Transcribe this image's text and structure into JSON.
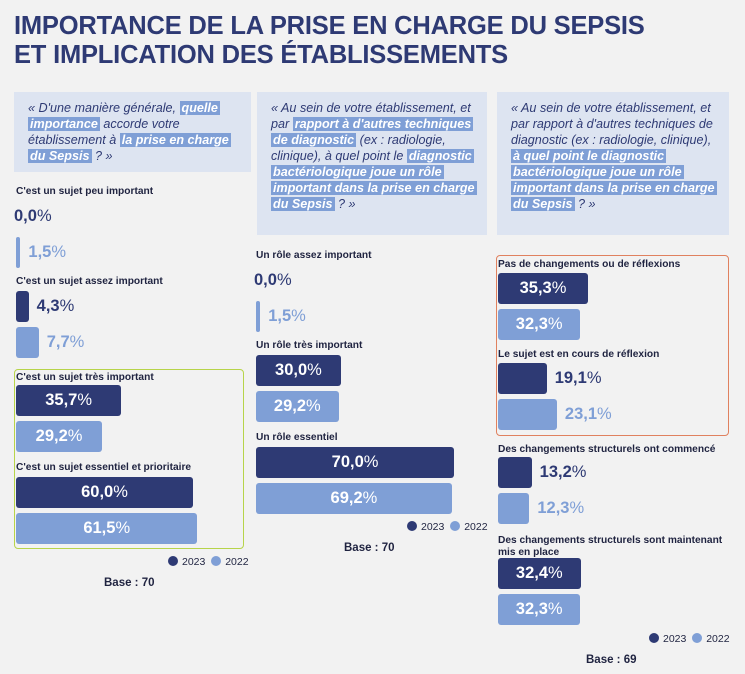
{
  "title": [
    "IMPORTANCE DE LA PRISE EN CHARGE DU SEPSIS",
    "ET IMPLICATION DES ÉTABLISSEMENTS"
  ],
  "colors": {
    "y2023": "#2e3a74",
    "y2022": "#7f9fd6",
    "accent_green": "#b7d44a",
    "accent_red": "#e0815f"
  },
  "legend": {
    "y2023": "2023",
    "y2022": "2022"
  },
  "chart_data": [
    {
      "type": "bar",
      "question": [
        {
          "t": "« D'une manière générale, ",
          "h": false
        },
        {
          "t": "quelle importance",
          "h": true
        },
        {
          "t": " accorde votre établissement à ",
          "h": false
        },
        {
          "t": "la prise en charge du Sepsis",
          "h": true
        },
        {
          "t": " ? »",
          "h": false
        }
      ],
      "categories": [
        "C'est un sujet peu important",
        "C'est un sujet assez important",
        "C'est un sujet très important",
        "C'est un sujet essentiel et prioritaire"
      ],
      "series": [
        {
          "name": "2023",
          "values": [
            0.0,
            4.3,
            35.7,
            60.0
          ]
        },
        {
          "name": "2022",
          "values": [
            1.5,
            7.7,
            29.2,
            61.5
          ]
        }
      ],
      "highlighted": [
        "C'est un sujet très important",
        "C'est un sujet essentiel et prioritaire"
      ],
      "base": "Base : 70"
    },
    {
      "type": "bar",
      "question": [
        {
          "t": "« Au sein de votre établissement, et par ",
          "h": false
        },
        {
          "t": "rapport à d'autres techniques de diagnostic",
          "h": true
        },
        {
          "t": " (ex : radiologie, clinique), à quel point le ",
          "h": false
        },
        {
          "t": "diagnostic bactériologique joue un rôle important dans la prise en charge du Sepsis",
          "h": true
        },
        {
          "t": " ? »",
          "h": false
        }
      ],
      "categories": [
        "Un rôle assez important",
        "Un rôle très important",
        "Un rôle essentiel"
      ],
      "series": [
        {
          "name": "2023",
          "values": [
            0.0,
            30.0,
            70.0
          ]
        },
        {
          "name": "2022",
          "values": [
            1.5,
            29.2,
            69.2
          ]
        }
      ],
      "base": "Base : 70"
    },
    {
      "type": "bar",
      "question": [
        {
          "t": "« Au sein de votre établissement, et par rapport à d'autres techniques de diagnostic (ex : radiologie, clinique), ",
          "h": false
        },
        {
          "t": "à quel point le diagnostic bactériologique joue un rôle important dans la prise en charge du Sepsis",
          "h": true
        },
        {
          "t": " ? »",
          "h": false
        }
      ],
      "categories": [
        "Pas de changements ou de réflexions",
        "Le sujet est en cours de réflexion",
        "Des changements structurels ont commencé",
        "Des changements structurels sont maintenant mis en place"
      ],
      "series": [
        {
          "name": "2023",
          "values": [
            35.3,
            19.1,
            13.2,
            32.4
          ]
        },
        {
          "name": "2022",
          "values": [
            32.3,
            23.1,
            12.3,
            32.3
          ]
        }
      ],
      "highlighted": [
        "Pas de changements ou de réflexions",
        "Le sujet est en cours de réflexion"
      ],
      "base": "Base : 69"
    }
  ]
}
